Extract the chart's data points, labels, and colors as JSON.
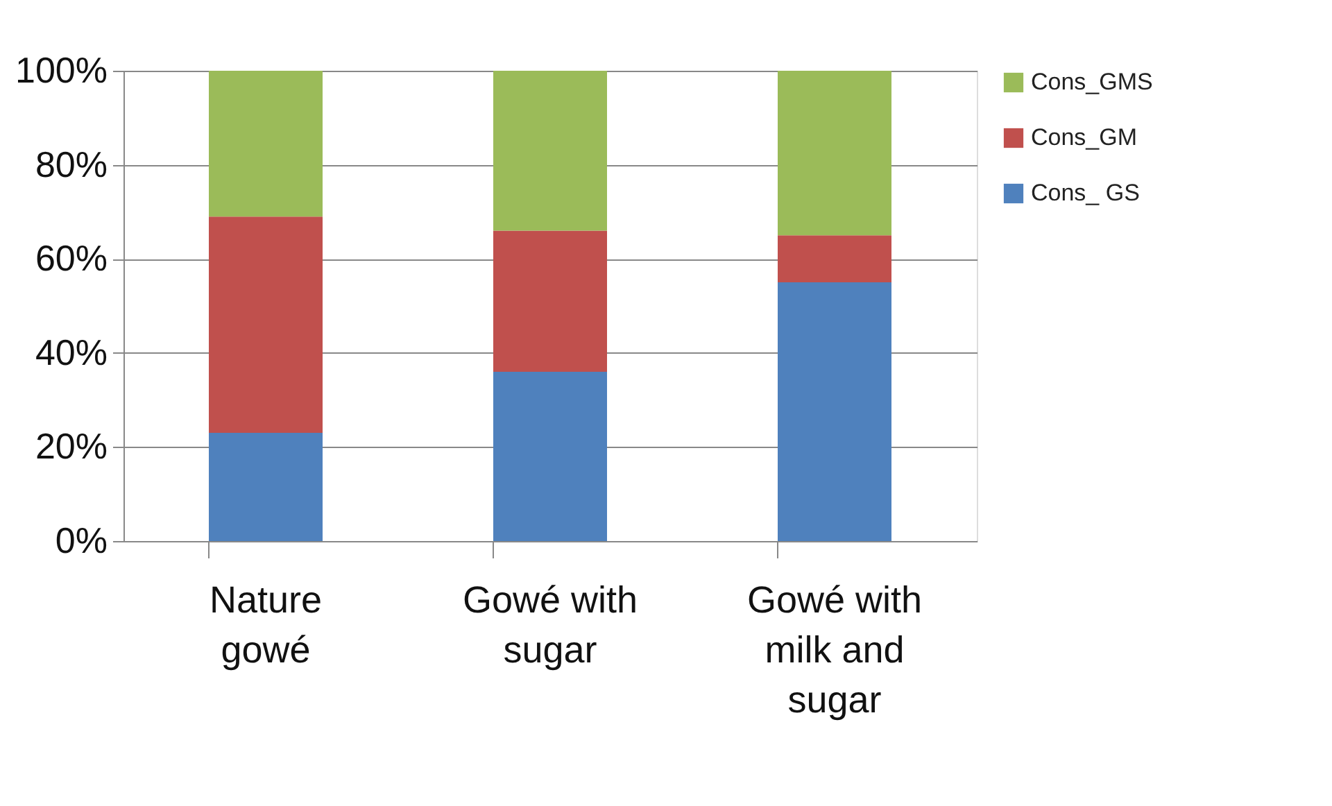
{
  "chart_data": {
    "type": "bar",
    "stacked": true,
    "categories": [
      "Nature gowé",
      "Gowé with sugar",
      "Gowé with milk and sugar"
    ],
    "series": [
      {
        "name": "Cons_ GS",
        "color": "#4f81bd",
        "values": [
          23,
          36,
          55
        ]
      },
      {
        "name": "Cons_GM",
        "color": "#c0504d",
        "values": [
          46,
          30,
          10
        ]
      },
      {
        "name": "Cons_GMS",
        "color": "#9bbb59",
        "values": [
          31,
          34,
          35
        ]
      }
    ],
    "ylim": [
      0,
      100
    ],
    "yticks": [
      {
        "value": 0,
        "label": "0%"
      },
      {
        "value": 20,
        "label": "20%"
      },
      {
        "value": 40,
        "label": "40%"
      },
      {
        "value": 60,
        "label": "60%"
      },
      {
        "value": 80,
        "label": "80%"
      },
      {
        "value": 100,
        "label": "100%"
      }
    ],
    "grid": "y",
    "legend": "right"
  }
}
